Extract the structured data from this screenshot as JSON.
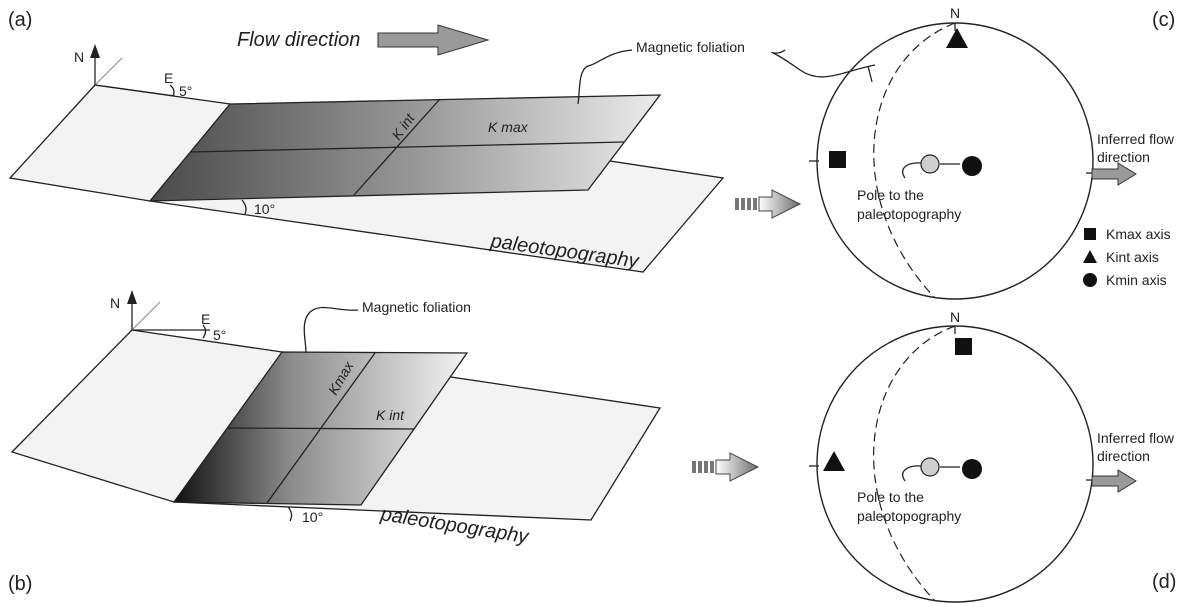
{
  "panels": {
    "a": "(a)",
    "b": "(b)",
    "c": "(c)",
    "d": "(d)"
  },
  "block_a": {
    "north": "N",
    "east": "E",
    "strike_angle": "5°",
    "flow_direction": "Flow direction",
    "foliation": "Magnetic foliation",
    "kint": "K int",
    "kmax": "K max",
    "dip_angle": "10°",
    "surface": "paleotopography"
  },
  "block_b": {
    "north": "N",
    "east": "E",
    "strike_angle": "5°",
    "foliation": "Magnetic foliation",
    "kmax": "Kmax",
    "kint": "K int",
    "dip_angle": "10°",
    "surface": "paleotopography"
  },
  "stereonet_c": {
    "north": "N",
    "pole_line1": "Pole to the",
    "pole_line2": "paleotopography",
    "flow_line1": "Inferred flow",
    "flow_line2": "direction"
  },
  "stereonet_d": {
    "north": "N",
    "pole_line1": "Pole to the",
    "pole_line2": "paleotopography",
    "flow_line1": "Inferred flow",
    "flow_line2": "direction"
  },
  "legend": {
    "kmax": "Kmax axis",
    "kint": "Kint axis",
    "kmin": "Kmin axis"
  },
  "colors": {
    "foliation_dark": "#5a5a5a",
    "foliation_light": "#e6e6e6",
    "plane_fill": "#f2f2f2",
    "arrow_fill": "#9a9a9a"
  }
}
